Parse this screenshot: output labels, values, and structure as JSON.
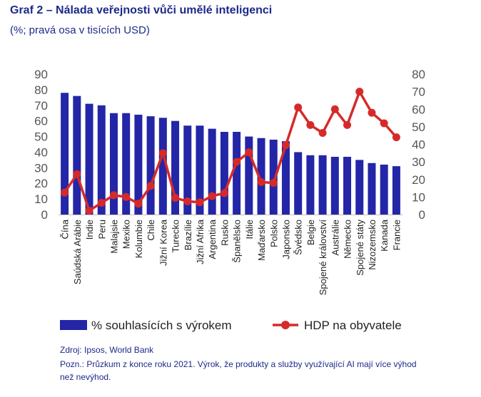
{
  "header": {
    "title": "Graf 2 – Nálada veřejnosti vůči umělé inteligenci",
    "subtitle": "(%; pravá osa v tisících USD)"
  },
  "footer": {
    "source": "Zdroj: Ipsos, World Bank",
    "note": "Pozn.: Průzkum z konce roku 2021. Výrok, že produkty a služby využívající AI mají více výhod než nevýhod."
  },
  "colors": {
    "bar": "#2326a6",
    "line": "#d62a2a",
    "axis_text": "#555555",
    "category_text": "#222222"
  },
  "chart_data": {
    "type": "bar",
    "categories": [
      "Čína",
      "Saúdská Arábie",
      "Indie",
      "Peru",
      "Malajsie",
      "Mexiko",
      "Kolumbie",
      "Chile",
      "Jižní Korea",
      "Turecko",
      "Brazílie",
      "Jižní Afrika",
      "Argentina",
      "Rusko",
      "Španělsko",
      "Itálie",
      "Maďarsko",
      "Polsko",
      "Japonsko",
      "Švédsko",
      "Belgie",
      "Spojené království",
      "Austrálie",
      "Německo",
      "Spojené státy",
      "Nizozemsko",
      "Kanada",
      "Francie"
    ],
    "series": [
      {
        "name": "% souhlasících s výrokem",
        "type": "bar",
        "axis": "left",
        "values": [
          78,
          76,
          71,
          70,
          65,
          65,
          64,
          63,
          62,
          60,
          57,
          57,
          55,
          53,
          53,
          50,
          49,
          48,
          47,
          40,
          38,
          38,
          37,
          37,
          35,
          33,
          32,
          31
        ]
      },
      {
        "name": "HDP na obyvatele",
        "type": "line",
        "axis": "right",
        "values": [
          12.5,
          23,
          2.2,
          6.7,
          11,
          10,
          6.2,
          16.3,
          35,
          9.5,
          7.5,
          7,
          10.5,
          12.2,
          30,
          35.5,
          18.5,
          18,
          39.5,
          61,
          51,
          46.5,
          60,
          51,
          70,
          58,
          52,
          44
        ]
      }
    ],
    "yleft": {
      "lim": [
        0,
        90
      ],
      "ticks": [
        "0",
        "10",
        "20",
        "30",
        "40",
        "50",
        "60",
        "70",
        "80",
        "90"
      ]
    },
    "yright": {
      "lim": [
        0,
        80
      ],
      "ticks": [
        "0",
        "10",
        "20",
        "30",
        "40",
        "50",
        "60",
        "70",
        "80"
      ]
    },
    "grid": false,
    "legend": "bottom"
  }
}
